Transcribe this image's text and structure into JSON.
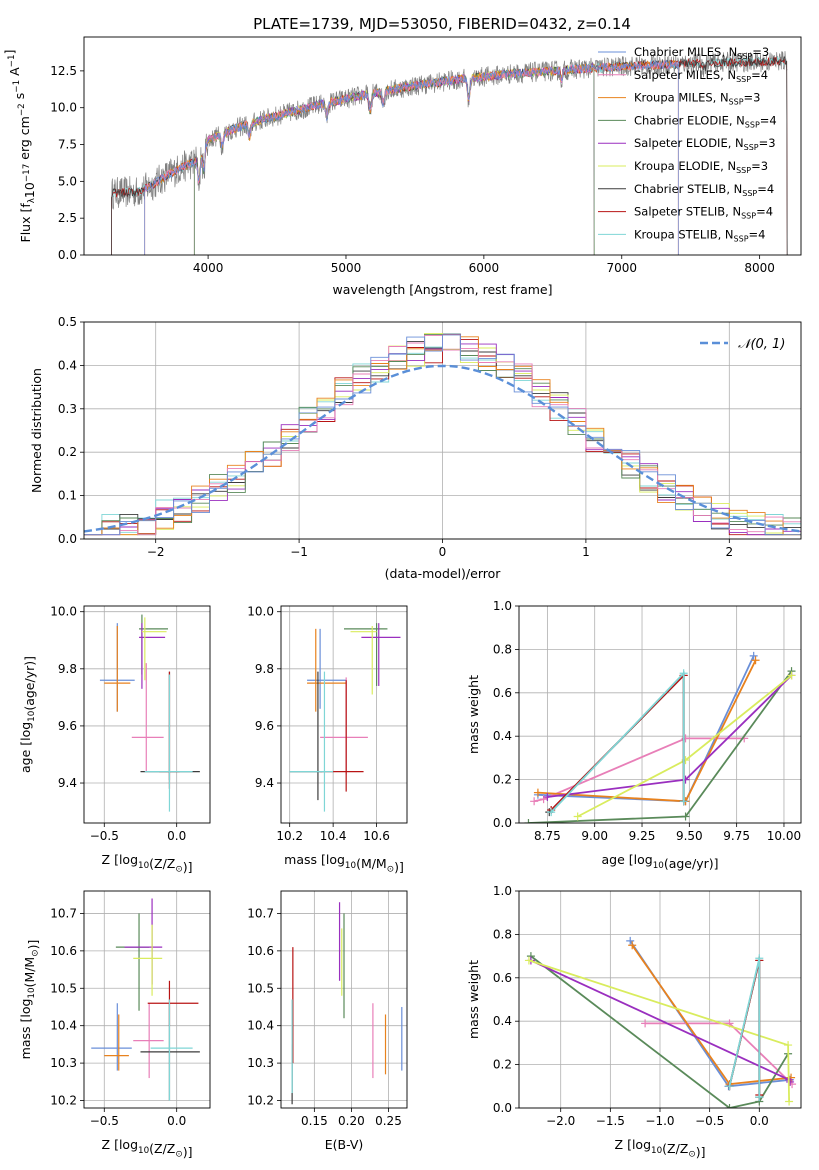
{
  "figure_title": "PLATE=1739, MJD=53050, FIBERID=0432, z=0.14",
  "colors": {
    "Chabrier MILES": "#6a8fd8",
    "Salpeter MILES": "#e87fb8",
    "Kroupa MILES": "#e8821e",
    "Chabrier ELODIE": "#5a8a5a",
    "Salpeter ELODIE": "#9a2fbf",
    "Kroupa ELODIE": "#d9ec5e",
    "Chabrier STELIB": "#3c3c3c",
    "Salpeter STELIB": "#b81414",
    "Kroupa STELIB": "#7fd6d6",
    "observed": "#808080",
    "gaussian": "#5a8fd8",
    "grid": "#b0b0b0"
  },
  "chart_data": [
    {
      "id": "spectrum",
      "type": "line",
      "xlabel": "wavelength [Angstrom, rest frame]",
      "ylabel_parts": [
        "Flux [f",
        "λ",
        "10",
        "−17",
        " erg cm",
        "−2",
        " s",
        "−1",
        " A",
        "−1",
        "]"
      ],
      "xlim": [
        3100,
        8300
      ],
      "ylim": [
        0,
        14.8
      ],
      "xticks": [
        4000,
        5000,
        6000,
        7000,
        8000
      ],
      "yticks": [
        0.0,
        2.5,
        5.0,
        7.5,
        10.0,
        12.5
      ],
      "grid": false,
      "legend_position": "top-right",
      "legend": [
        {
          "model": "Chabrier MILES",
          "n": "3"
        },
        {
          "model": "Salpeter MILES",
          "n": "4"
        },
        {
          "model": "Kroupa MILES",
          "n": "3"
        },
        {
          "model": "Chabrier ELODIE",
          "n": "4"
        },
        {
          "model": "Salpeter ELODIE",
          "n": "3"
        },
        {
          "model": "Kroupa ELODIE",
          "n": "3"
        },
        {
          "model": "Chabrier STELIB",
          "n": "4"
        },
        {
          "model": "Salpeter STELIB",
          "n": "4"
        },
        {
          "model": "Kroupa STELIB",
          "n": "4"
        }
      ],
      "continuum": {
        "x": [
          3300,
          3500,
          3600,
          3700,
          3800,
          3900,
          4000,
          4200,
          4400,
          4600,
          4800,
          5000,
          5200,
          5500,
          5800,
          6000,
          6200,
          6500,
          6800,
          7000,
          7200,
          7500,
          7800,
          8000,
          8200
        ],
        "y": [
          4.2,
          4.3,
          4.8,
          5.4,
          5.9,
          6.3,
          7.8,
          8.6,
          9.2,
          9.7,
          10.2,
          10.6,
          11.0,
          11.5,
          11.9,
          12.1,
          12.3,
          12.5,
          12.7,
          12.8,
          12.9,
          13.0,
          13.1,
          13.1,
          13.2
        ]
      },
      "model_ranges": {
        "MILES": [
          3540,
          7410
        ],
        "ELODIE": [
          3900,
          6800
        ],
        "STELIB": [
          3200,
          8300
        ]
      }
    },
    {
      "id": "residuals",
      "type": "histogram",
      "xlabel": "(data-model)/error",
      "ylabel": "Normed distribution",
      "xlim": [
        -2.5,
        2.5
      ],
      "ylim": [
        0,
        0.5
      ],
      "xticks": [
        -2,
        -1,
        0,
        1,
        2
      ],
      "yticks": [
        0.0,
        0.1,
        0.2,
        0.3,
        0.4,
        0.5
      ],
      "grid": true,
      "legend_position": "top-right",
      "gaussian_label": "𝒩(0, 1)"
    },
    {
      "id": "age-vs-Z",
      "type": "errorbar",
      "xlabel_parts": [
        "Z [log",
        "10",
        "(Z/Z",
        "⊙",
        ")]"
      ],
      "ylabel_parts": [
        "age  [log",
        "10",
        "(age/yr)]"
      ],
      "xlim": [
        -0.64,
        0.23
      ],
      "ylim": [
        9.26,
        10.02
      ],
      "xticks": [
        -0.5,
        0.0
      ],
      "xtick_labels": [
        "−0.5",
        "0.0"
      ],
      "yticks": [
        9.4,
        9.6,
        9.8,
        10.0
      ],
      "grid": true,
      "points": [
        {
          "model": "Chabrier MILES",
          "x": -0.41,
          "xerr": [
            0.12,
            0.12
          ],
          "y": 9.76,
          "yerr": [
            0.11,
            0.2
          ]
        },
        {
          "model": "Kroupa MILES",
          "x": -0.41,
          "xerr": [
            0.09,
            0.09
          ],
          "y": 9.75,
          "yerr": [
            0.1,
            0.2
          ]
        },
        {
          "model": "Salpeter MILES",
          "x": -0.21,
          "xerr": [
            0.1,
            0.12
          ],
          "y": 9.56,
          "yerr": [
            0.12,
            0.26
          ]
        },
        {
          "model": "Chabrier ELODIE",
          "x": -0.24,
          "xerr": [
            0.02,
            0.18
          ],
          "y": 9.94,
          "yerr": [
            0.16,
            0.05
          ]
        },
        {
          "model": "Salpeter ELODIE",
          "x": -0.24,
          "xerr": [
            0.02,
            0.16
          ],
          "y": 9.91,
          "yerr": [
            0.18,
            0.05
          ]
        },
        {
          "model": "Kroupa ELODIE",
          "x": -0.22,
          "xerr": [
            0.02,
            0.15
          ],
          "y": 9.93,
          "yerr": [
            0.17,
            0.05
          ]
        },
        {
          "model": "Chabrier STELIB",
          "x": -0.05,
          "xerr": [
            0.2,
            0.21
          ],
          "y": 9.44,
          "yerr": [
            0.03,
            0.35
          ]
        },
        {
          "model": "Salpeter STELIB",
          "x": -0.05,
          "xerr": [
            0.07,
            0.07
          ],
          "y": 9.44,
          "yerr": [
            0.06,
            0.35
          ]
        },
        {
          "model": "Kroupa STELIB",
          "x": -0.05,
          "xerr": [
            0.17,
            0.16
          ],
          "y": 9.44,
          "yerr": [
            0.14,
            0.34
          ]
        }
      ]
    },
    {
      "id": "age-vs-mass",
      "type": "errorbar",
      "xlabel_parts": [
        "mass [log",
        "10",
        "(M/M",
        "⊙",
        ")]"
      ],
      "ylabel_parts": [],
      "xlim": [
        10.16,
        10.74
      ],
      "ylim": [
        9.26,
        10.02
      ],
      "xticks": [
        10.2,
        10.4,
        10.6
      ],
      "xtick_labels": [
        "10.2",
        "10.4",
        "10.6"
      ],
      "yticks": [
        9.4,
        9.6,
        9.8,
        10.0
      ],
      "grid": true,
      "points": [
        {
          "model": "Chabrier MILES",
          "x": 10.34,
          "xerr": [
            0.06,
            0.12
          ],
          "y": 9.76,
          "yerr": [
            0.1,
            0.18
          ]
        },
        {
          "model": "Kroupa MILES",
          "x": 10.32,
          "xerr": [
            0.04,
            0.14
          ],
          "y": 9.75,
          "yerr": [
            0.1,
            0.19
          ]
        },
        {
          "model": "Salpeter MILES",
          "x": 10.46,
          "xerr": [
            0.12,
            0.1
          ],
          "y": 9.56,
          "yerr": [
            0.13,
            0.21
          ]
        },
        {
          "model": "Chabrier ELODIE",
          "x": 10.6,
          "xerr": [
            0.15,
            0.05
          ],
          "y": 9.94,
          "yerr": [
            0.2,
            0.02
          ]
        },
        {
          "model": "Salpeter ELODIE",
          "x": 10.61,
          "xerr": [
            0.08,
            0.1
          ],
          "y": 9.91,
          "yerr": [
            0.17,
            0.05
          ]
        },
        {
          "model": "Kroupa ELODIE",
          "x": 10.58,
          "xerr": [
            0.1,
            0.02
          ],
          "y": 9.93,
          "yerr": [
            0.22,
            0.02
          ]
        },
        {
          "model": "Chabrier STELIB",
          "x": 10.33,
          "xerr": [
            0.13,
            0.02
          ],
          "y": 9.44,
          "yerr": [
            0.1,
            0.35
          ]
        },
        {
          "model": "Salpeter STELIB",
          "x": 10.46,
          "xerr": [
            0.12,
            0.08
          ],
          "y": 9.44,
          "yerr": [
            0.07,
            0.32
          ]
        },
        {
          "model": "Kroupa STELIB",
          "x": 10.36,
          "xerr": [
            0.16,
            0.04
          ],
          "y": 9.44,
          "yerr": [
            0.14,
            0.35
          ]
        }
      ]
    },
    {
      "id": "weight-vs-age",
      "type": "line",
      "xlabel_parts": [
        "age  [log",
        "10",
        "(age/yr)]"
      ],
      "ylabel": "mass weight",
      "xlim": [
        8.6,
        10.09
      ],
      "ylim": [
        0,
        1
      ],
      "xticks": [
        8.75,
        9.0,
        9.25,
        9.5,
        9.75,
        10.0
      ],
      "xtick_labels": [
        "8.75",
        "9.00",
        "9.25",
        "9.50",
        "9.75",
        "10.00"
      ],
      "yticks": [
        0.0,
        0.2,
        0.4,
        0.6,
        0.8,
        1.0
      ],
      "grid": true,
      "series": [
        {
          "model": "Chabrier MILES",
          "x": [
            8.7,
            9.48,
            9.84
          ],
          "y": [
            0.13,
            0.1,
            0.77
          ]
        },
        {
          "model": "Salpeter MILES",
          "x": [
            8.68,
            8.73,
            9.48,
            9.79
          ],
          "y": [
            0.1,
            0.11,
            0.39,
            0.39
          ]
        },
        {
          "model": "Kroupa MILES",
          "x": [
            8.7,
            9.48,
            9.85
          ],
          "y": [
            0.14,
            0.1,
            0.75
          ]
        },
        {
          "model": "Chabrier ELODIE",
          "x": [
            8.65,
            9.48,
            10.04
          ],
          "y": [
            0.0,
            0.03,
            0.7
          ]
        },
        {
          "model": "Salpeter ELODIE",
          "x": [
            8.75,
            9.48,
            10.04
          ],
          "y": [
            0.12,
            0.2,
            0.68
          ]
        },
        {
          "model": "Kroupa ELODIE",
          "x": [
            8.91,
            9.48,
            10.04
          ],
          "y": [
            0.03,
            0.29,
            0.68
          ]
        },
        {
          "model": "Chabrier STELIB",
          "x": [
            8.76,
            9.47,
            9.47
          ],
          "y": [
            0.05,
            0.68,
            0.1
          ]
        },
        {
          "model": "Salpeter STELIB",
          "x": [
            8.77,
            9.47,
            9.47
          ],
          "y": [
            0.06,
            0.68,
            0.1
          ]
        },
        {
          "model": "Kroupa STELIB",
          "x": [
            8.77,
            9.47,
            9.47
          ],
          "y": [
            0.05,
            0.69,
            0.1
          ]
        }
      ]
    },
    {
      "id": "mass-vs-Z",
      "type": "errorbar",
      "xlabel_parts": [
        "Z [log",
        "10",
        "(Z/Z",
        "⊙",
        ")]"
      ],
      "ylabel_parts": [
        "mass [log",
        "10",
        "(M/M",
        "⊙",
        ")]"
      ],
      "xlim": [
        -0.64,
        0.23
      ],
      "ylim": [
        10.18,
        10.76
      ],
      "xticks": [
        -0.5,
        0.0
      ],
      "xtick_labels": [
        "−0.5",
        "0.0"
      ],
      "yticks": [
        10.2,
        10.3,
        10.4,
        10.5,
        10.6,
        10.7
      ],
      "grid": true,
      "points": [
        {
          "model": "Chabrier MILES",
          "x": -0.41,
          "xerr": [
            0.18,
            0.1
          ],
          "y": 10.34,
          "yerr": [
            0.06,
            0.12
          ]
        },
        {
          "model": "Kroupa MILES",
          "x": -0.4,
          "xerr": [
            0.1,
            0.07
          ],
          "y": 10.32,
          "yerr": [
            0.04,
            0.11
          ]
        },
        {
          "model": "Salpeter MILES",
          "x": -0.19,
          "xerr": [
            0.11,
            0.1
          ],
          "y": 10.36,
          "yerr": [
            0.1,
            0.1
          ]
        },
        {
          "model": "Chabrier ELODIE",
          "x": -0.26,
          "xerr": [
            0.16,
            0.07
          ],
          "y": 10.61,
          "yerr": [
            0.17,
            0.09
          ]
        },
        {
          "model": "Salpeter ELODIE",
          "x": -0.17,
          "xerr": [
            0.19,
            0.07
          ],
          "y": 10.61,
          "yerr": [
            0.1,
            0.13
          ]
        },
        {
          "model": "Kroupa ELODIE",
          "x": -0.17,
          "xerr": [
            0.13,
            0.07
          ],
          "y": 10.58,
          "yerr": [
            0.1,
            0.09
          ]
        },
        {
          "model": "Chabrier STELIB",
          "x": -0.05,
          "xerr": [
            0.2,
            0.21
          ],
          "y": 10.33,
          "yerr": [
            0.13,
            0.13
          ]
        },
        {
          "model": "Salpeter STELIB",
          "x": -0.05,
          "xerr": [
            0.15,
            0.2
          ],
          "y": 10.46,
          "yerr": [
            0.06,
            0.06
          ]
        },
        {
          "model": "Kroupa STELIB",
          "x": -0.05,
          "xerr": [
            0.13,
            0.16
          ],
          "y": 10.34,
          "yerr": [
            0.14,
            0.13
          ]
        }
      ]
    },
    {
      "id": "mass-vs-EBV",
      "type": "errorbar",
      "xlabel_parts": [
        "E(B-V)"
      ],
      "ylabel_parts": [],
      "xlim": [
        0.105,
        0.275
      ],
      "ylim": [
        10.18,
        10.76
      ],
      "xticks": [
        0.15,
        0.2,
        0.25
      ],
      "xtick_labels": [
        "0.15",
        "0.20",
        "0.25"
      ],
      "yticks": [
        10.2,
        10.3,
        10.4,
        10.5,
        10.6,
        10.7
      ],
      "grid": true,
      "points": [
        {
          "model": "Chabrier MILES",
          "x": 0.268,
          "xerr": [
            0,
            0
          ],
          "y": 10.36,
          "yerr": [
            0.08,
            0.09
          ]
        },
        {
          "model": "Kroupa MILES",
          "x": 0.246,
          "xerr": [
            0,
            0
          ],
          "y": 10.33,
          "yerr": [
            0.06,
            0.1
          ]
        },
        {
          "model": "Salpeter MILES",
          "x": 0.229,
          "xerr": [
            0,
            0
          ],
          "y": 10.36,
          "yerr": [
            0.1,
            0.1
          ]
        },
        {
          "model": "Chabrier ELODIE",
          "x": 0.19,
          "xerr": [
            0,
            0
          ],
          "y": 10.56,
          "yerr": [
            0.14,
            0.14
          ]
        },
        {
          "model": "Salpeter ELODIE",
          "x": 0.184,
          "xerr": [
            0,
            0
          ],
          "y": 10.62,
          "yerr": [
            0.1,
            0.11
          ]
        },
        {
          "model": "Kroupa ELODIE",
          "x": 0.187,
          "xerr": [
            0,
            0
          ],
          "y": 10.56,
          "yerr": [
            0.08,
            0.1
          ]
        },
        {
          "model": "Chabrier STELIB",
          "x": 0.12,
          "xerr": [
            0,
            0
          ],
          "y": 10.33,
          "yerr": [
            0.14,
            0.02
          ]
        },
        {
          "model": "Salpeter STELIB",
          "x": 0.121,
          "xerr": [
            0,
            0
          ],
          "y": 10.46,
          "yerr": [
            0.16,
            0.15
          ]
        },
        {
          "model": "Kroupa STELIB",
          "x": 0.12,
          "xerr": [
            0,
            0
          ],
          "y": 10.34,
          "yerr": [
            0.12,
            0.13
          ]
        }
      ]
    },
    {
      "id": "weight-vs-Z",
      "type": "line",
      "xlabel_parts": [
        "Z [log",
        "10",
        "(Z/Z",
        "⊙",
        ")]"
      ],
      "ylabel": "mass weight",
      "xlim": [
        -2.42,
        0.42
      ],
      "ylim": [
        0,
        1
      ],
      "xticks": [
        -2.0,
        -1.5,
        -1.0,
        -0.5,
        0.0
      ],
      "xtick_labels": [
        "−2.0",
        "−1.5",
        "−1.0",
        "−0.5",
        "0.0"
      ],
      "yticks": [
        0.0,
        0.2,
        0.4,
        0.6,
        0.8,
        1.0
      ],
      "grid": true,
      "series": [
        {
          "model": "Chabrier MILES",
          "x": [
            -1.3,
            -0.31,
            0.31
          ],
          "y": [
            0.77,
            0.1,
            0.13
          ]
        },
        {
          "model": "Salpeter MILES",
          "x": [
            -1.15,
            -0.3,
            0.33
          ],
          "y": [
            0.39,
            0.39,
            0.11
          ]
        },
        {
          "model": "Kroupa MILES",
          "x": [
            -1.28,
            -0.3,
            0.32
          ],
          "y": [
            0.75,
            0.11,
            0.14
          ]
        },
        {
          "model": "Chabrier ELODIE",
          "x": [
            -2.3,
            -0.3,
            0.0,
            0.29
          ],
          "y": [
            0.7,
            0.0,
            0.03,
            0.25
          ]
        },
        {
          "model": "Salpeter ELODIE",
          "x": [
            -2.3,
            0.3,
            0.31
          ],
          "y": [
            0.68,
            0.13,
            0.12
          ]
        },
        {
          "model": "Kroupa ELODIE",
          "x": [
            -2.32,
            0.29,
            0.3
          ],
          "y": [
            0.68,
            0.29,
            0.03
          ]
        },
        {
          "model": "Chabrier STELIB",
          "x": [
            -0.3,
            0.0,
            0.0
          ],
          "y": [
            0.1,
            0.68,
            0.05
          ]
        },
        {
          "model": "Salpeter STELIB",
          "x": [
            -0.3,
            0.0,
            0.0
          ],
          "y": [
            0.1,
            0.68,
            0.06
          ]
        },
        {
          "model": "Kroupa STELIB",
          "x": [
            -0.3,
            0.0,
            0.0
          ],
          "y": [
            0.1,
            0.69,
            0.05
          ]
        }
      ]
    }
  ]
}
